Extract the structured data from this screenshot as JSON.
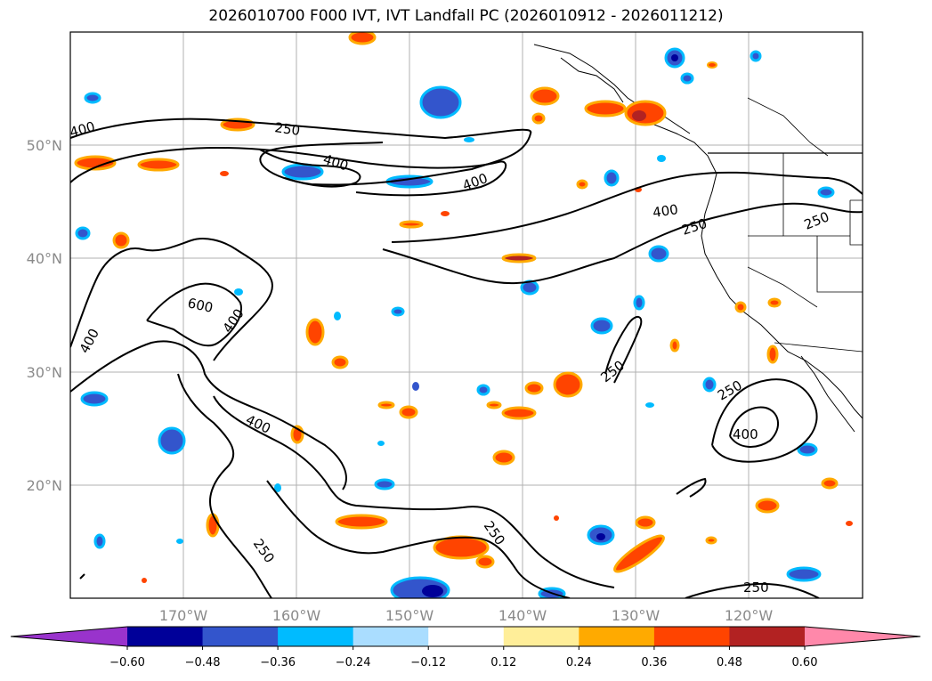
{
  "title": "2026010700 F000 IVT, IVT Landfall PC (2026010912 - 2026011212)",
  "map": {
    "lon_labels": [
      "170°W",
      "160°W",
      "150°W",
      "140°W",
      "130°W",
      "120°W"
    ],
    "lat_labels": [
      "50°N",
      "40°N",
      "30°N",
      "20°N"
    ],
    "contour_labels": [
      {
        "text": "400",
        "id": "c400-a"
      },
      {
        "text": "250",
        "id": "c250-a"
      },
      {
        "text": "400",
        "id": "c400-b"
      },
      {
        "text": "400",
        "id": "c400-c"
      },
      {
        "text": "400",
        "id": "c400-d"
      },
      {
        "text": "250",
        "id": "c250-b"
      },
      {
        "text": "250",
        "id": "c250-c"
      },
      {
        "text": "600",
        "id": "c600-a"
      },
      {
        "text": "400",
        "id": "c400-e"
      },
      {
        "text": "400",
        "id": "c400-f"
      },
      {
        "text": "250",
        "id": "c250-d"
      },
      {
        "text": "250",
        "id": "c250-e"
      },
      {
        "text": "400",
        "id": "c400-g"
      },
      {
        "text": "400",
        "id": "c400-h"
      },
      {
        "text": "250",
        "id": "c250-f"
      },
      {
        "text": "250",
        "id": "c250-g"
      },
      {
        "text": "250",
        "id": "c250-h"
      }
    ]
  },
  "colorbar": {
    "colors": [
      "#9933cc",
      "#000099",
      "#3355cc",
      "#00bbff",
      "#aaddff",
      "#ffffff",
      "#ffee99",
      "#ffaa00",
      "#ff4400",
      "#b22222",
      "#ff88aa"
    ],
    "tick_labels": [
      "−0.60",
      "−0.48",
      "−0.36",
      "−0.24",
      "−0.12",
      "0.12",
      "0.24",
      "0.36",
      "0.48",
      "0.60"
    ]
  }
}
